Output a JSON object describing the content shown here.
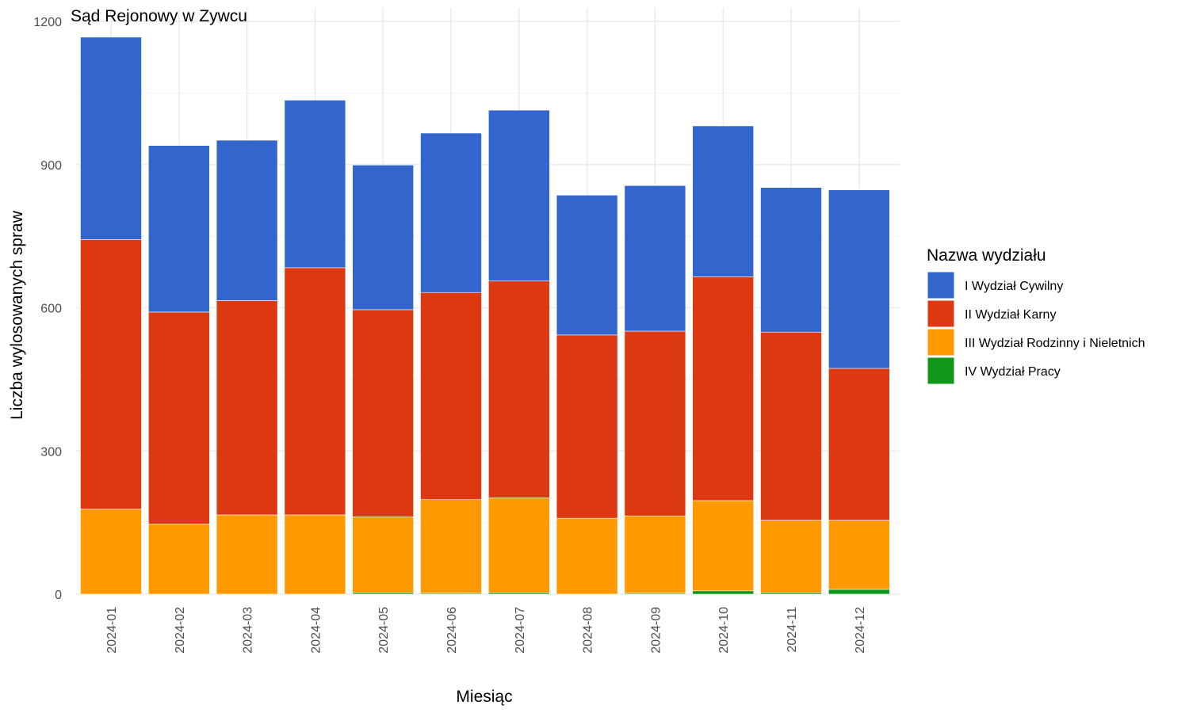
{
  "chart_data": {
    "type": "bar",
    "stacked": true,
    "title": "Sąd Rejonowy w Zywcu",
    "xlabel": "Miesiąc",
    "ylabel": "Liczba wylosowanych spraw",
    "ylim": [
      0,
      1200
    ],
    "yticks": [
      0,
      300,
      600,
      900,
      1200
    ],
    "grid": true,
    "legend_title": "Nazwa wydziału",
    "legend_position": "right",
    "categories": [
      "2024-01",
      "2024-02",
      "2024-03",
      "2024-04",
      "2024-05",
      "2024-06",
      "2024-07",
      "2024-08",
      "2024-09",
      "2024-10",
      "2024-11",
      "2024-12"
    ],
    "series": [
      {
        "name": "IV Wydział Pracy",
        "color": "#109618",
        "values": [
          0,
          0,
          0,
          0,
          3,
          2,
          3,
          0,
          2,
          7,
          3,
          10
        ]
      },
      {
        "name": "III Wydział Rodzinny i Nieletnich",
        "color": "#FF9900",
        "values": [
          178,
          147,
          166,
          166,
          159,
          196,
          199,
          159,
          162,
          189,
          152,
          145
        ]
      },
      {
        "name": "II Wydział Karny",
        "color": "#DC3912",
        "values": [
          565,
          444,
          449,
          518,
          434,
          434,
          454,
          384,
          387,
          469,
          394,
          318
        ]
      },
      {
        "name": "I Wydział Cywilny",
        "color": "#3366CC",
        "values": [
          424,
          349,
          336,
          351,
          303,
          334,
          358,
          293,
          305,
          316,
          303,
          374
        ]
      }
    ],
    "legend_order": [
      "I Wydział Cywilny",
      "II Wydział Karny",
      "III Wydział Rodzinny i Nieletnich",
      "IV Wydział Pracy"
    ]
  }
}
